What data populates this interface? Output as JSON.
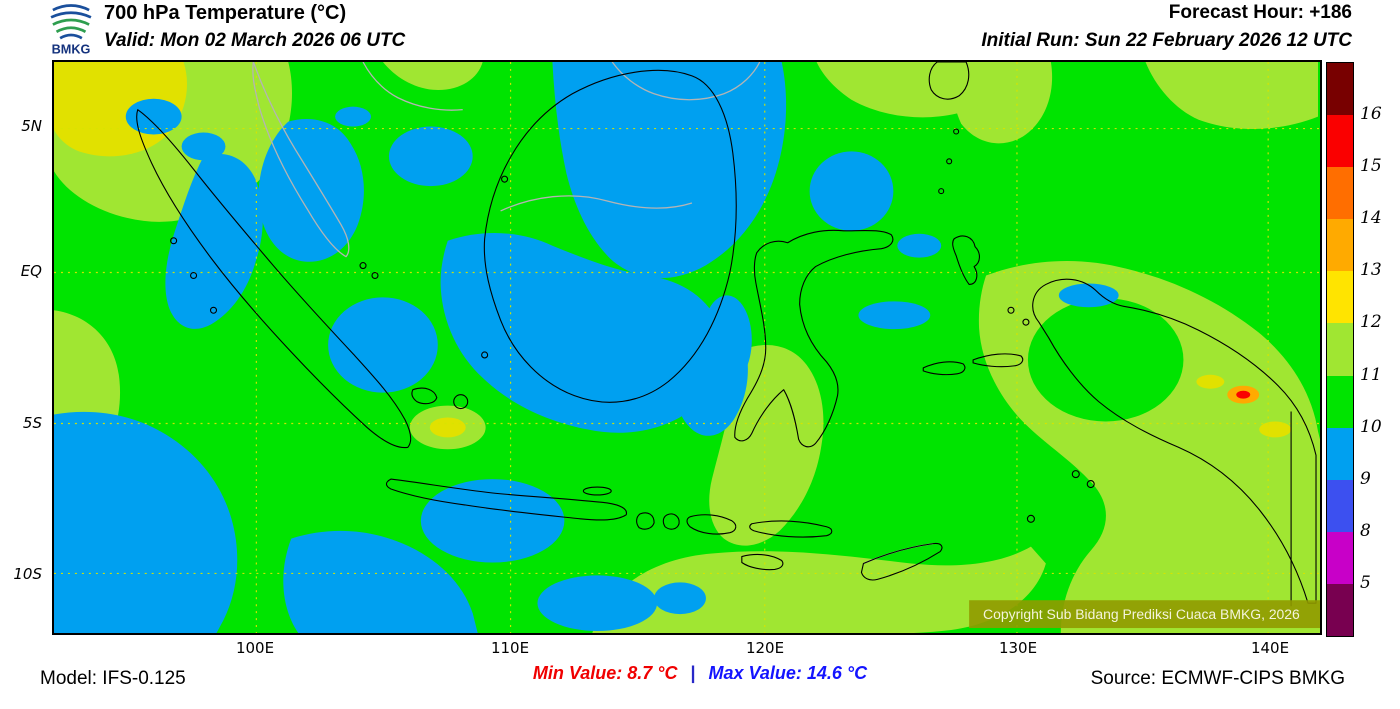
{
  "header": {
    "logo_text": "BMKG",
    "title": "700 hPa Temperature (°C)",
    "valid": "Valid: Mon 02 March 2026 06 UTC",
    "forecast_hour": "Forecast Hour: +186",
    "initial_run": "Initial Run: Sun 22 February 2026 12 UTC"
  },
  "map": {
    "lat_labels": [
      "5N",
      "EQ",
      "5S",
      "10S"
    ],
    "lon_labels": [
      "100E",
      "110E",
      "120E",
      "130E",
      "140E"
    ],
    "copyright": "Copyright Sub Bidang Prediksi Cuaca BMKG, 2026"
  },
  "colorbar": {
    "labels": [
      "16",
      "15",
      "14",
      "13",
      "12",
      "11",
      "10",
      "9",
      "8",
      "5"
    ],
    "colors": [
      "#780000",
      "#fa0000",
      "#ff6e00",
      "#ffaa00",
      "#ffe400",
      "#a0e632",
      "#00e400",
      "#00a0f0",
      "#3c50f0",
      "#c800c8",
      "#780050"
    ]
  },
  "footer": {
    "model": "Model: IFS-0.125",
    "min_text": "Min Value: 8.7 °C",
    "separator": "|",
    "max_text": "Max Value: 14.6 °C",
    "source": "Source: ECMWF-CIPS BMKG"
  },
  "palette": {
    "green": "#00e400",
    "yellow_green": "#a0e632",
    "yellow": "#e1e100",
    "blue": "#00a0f0",
    "orange": "#ffaa00",
    "red": "#fa0000",
    "grid": "#d8e400",
    "coast": "#000000",
    "gray_border": "#b4b4b4",
    "copyright_bg": "#909a00",
    "min_color": "#f00000",
    "max_color": "#1414ff"
  },
  "chart_data": {
    "type": "heatmap",
    "title": "700 hPa Temperature (°C)",
    "units": "°C",
    "scale_levels": [
      5,
      8,
      9,
      10,
      11,
      12,
      13,
      14,
      15,
      16
    ],
    "scale_colors": [
      "#780000",
      "#fa0000",
      "#ff6e00",
      "#ffaa00",
      "#ffe400",
      "#a0e632",
      "#00e400",
      "#00a0f0",
      "#3c50f0",
      "#c800c8",
      "#780050"
    ],
    "min_value": 8.7,
    "max_value": 14.6,
    "x_tick_labels": [
      "100E",
      "110E",
      "120E",
      "130E",
      "140E"
    ],
    "y_tick_labels": [
      "5N",
      "EQ",
      "5S",
      "10S"
    ],
    "dominant_field_values": {
      "green_band": "10-11",
      "yellow_green_band": "11-12",
      "blue_band": "9-10",
      "yellow_band": "12-13"
    }
  }
}
